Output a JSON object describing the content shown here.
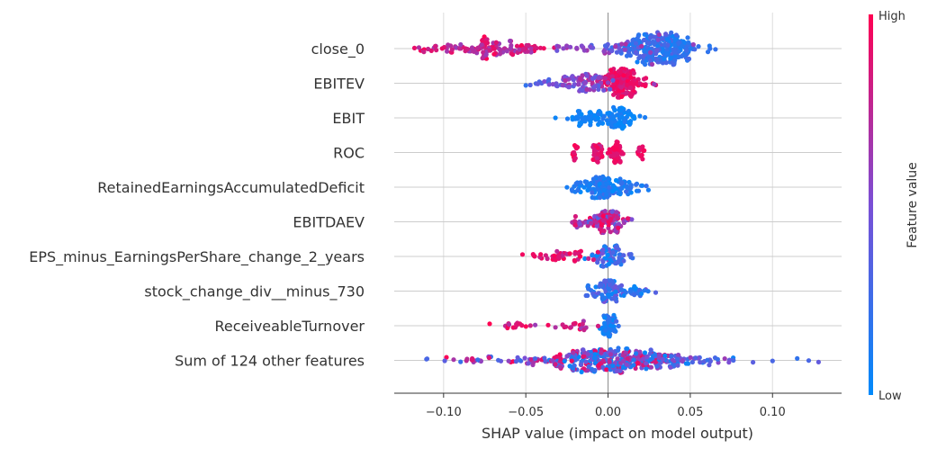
{
  "chart_data": {
    "type": "scatter",
    "subtype": "shap-beeswarm",
    "xlabel": "SHAP value (impact on model output)",
    "xlim": [
      -0.13,
      0.142
    ],
    "xticks": [
      -0.1,
      -0.05,
      0.0,
      0.05,
      0.1
    ],
    "xtick_labels": [
      "−0.10",
      "−0.05",
      "0.00",
      "0.05",
      "0.10"
    ],
    "grid": true,
    "colorbar": {
      "title": "Feature value",
      "high_label": "High",
      "low_label": "Low",
      "high_color": "#ff0052",
      "low_color": "#008afb"
    },
    "features": [
      {
        "name": "close_0",
        "clusters": [
          {
            "c": 0.032,
            "s": 0.012,
            "n": 260,
            "v": [
              0.05,
              0.35
            ]
          },
          {
            "c": -0.07,
            "s": 0.017,
            "n": 130,
            "v": [
              0.6,
              1.0
            ]
          },
          {
            "c": 0.0,
            "s": 0.022,
            "n": 50,
            "v": [
              0.3,
              0.7
            ]
          }
        ],
        "outliers": [
          [
            -0.115,
            0.7
          ],
          [
            -0.112,
            0.8
          ],
          [
            0.062,
            0.2
          ],
          [
            0.055,
            0.2
          ]
        ],
        "height": 18
      },
      {
        "name": "EBITEV",
        "clusters": [
          {
            "c": 0.008,
            "s": 0.007,
            "n": 150,
            "v": [
              0.8,
              1.0
            ]
          },
          {
            "c": -0.015,
            "s": 0.009,
            "n": 80,
            "v": [
              0.35,
              0.75
            ]
          },
          {
            "c": -0.04,
            "s": 0.006,
            "n": 12,
            "v": [
              0.2,
              0.6
            ]
          }
        ],
        "outliers": [
          [
            -0.05,
            0.2
          ],
          [
            0.028,
            0.6
          ]
        ],
        "height": 16
      },
      {
        "name": "EBIT",
        "clusters": [
          {
            "c": 0.006,
            "s": 0.004,
            "n": 70,
            "v": [
              0.0,
              0.15
            ]
          },
          {
            "c": -0.012,
            "s": 0.006,
            "n": 50,
            "v": [
              0.0,
              0.15
            ]
          },
          {
            "c": 0.015,
            "s": 0.004,
            "n": 10,
            "v": [
              0.0,
              0.15
            ]
          }
        ],
        "outliers": [
          [
            -0.032,
            0.05
          ]
        ],
        "height": 12
      },
      {
        "name": "ROC",
        "clusters": [
          {
            "c": 0.005,
            "s": 0.002,
            "n": 60,
            "v": [
              0.85,
              1.0
            ]
          },
          {
            "c": -0.006,
            "s": 0.0015,
            "n": 30,
            "v": [
              0.75,
              1.0
            ]
          },
          {
            "c": -0.02,
            "s": 0.0008,
            "n": 15,
            "v": [
              0.85,
              1.0
            ]
          },
          {
            "c": 0.02,
            "s": 0.0008,
            "n": 12,
            "v": [
              0.85,
              1.0
            ]
          }
        ],
        "outliers": [],
        "height": 12
      },
      {
        "name": "RetainedEarningsAccumulatedDeficit",
        "clusters": [
          {
            "c": -0.005,
            "s": 0.004,
            "n": 100,
            "v": [
              0.0,
              0.2
            ]
          },
          {
            "c": 0.008,
            "s": 0.008,
            "n": 70,
            "v": [
              0.0,
              0.3
            ]
          },
          {
            "c": -0.018,
            "s": 0.003,
            "n": 15,
            "v": [
              0.0,
              0.2
            ]
          }
        ],
        "outliers": [
          [
            -0.025,
            0.1
          ]
        ],
        "height": 12
      },
      {
        "name": "EBITDAEV",
        "clusters": [
          {
            "c": 0.0,
            "s": 0.006,
            "n": 120,
            "v": [
              0.3,
              1.0
            ]
          },
          {
            "c": -0.02,
            "s": 0.003,
            "n": 15,
            "v": [
              0.5,
              0.9
            ]
          }
        ],
        "outliers": [
          [
            0.012,
            0.9
          ]
        ],
        "height": 12
      },
      {
        "name": "EPS_minus_EarningsPerShare_change_2_years",
        "clusters": [
          {
            "c": 0.002,
            "s": 0.005,
            "n": 80,
            "v": [
              0.0,
              0.55
            ]
          },
          {
            "c": -0.03,
            "s": 0.01,
            "n": 40,
            "v": [
              0.75,
              1.0
            ]
          }
        ],
        "outliers": [
          [
            -0.052,
            0.95
          ],
          [
            0.014,
            0.3
          ]
        ],
        "height": 12
      },
      {
        "name": "stock_change_div__minus_730",
        "clusters": [
          {
            "c": 0.0,
            "s": 0.006,
            "n": 100,
            "v": [
              0.0,
              0.5
            ]
          },
          {
            "c": 0.018,
            "s": 0.004,
            "n": 20,
            "v": [
              0.0,
              0.3
            ]
          }
        ],
        "outliers": [
          [
            0.029,
            0.35
          ],
          [
            -0.012,
            0.2
          ]
        ],
        "height": 12
      },
      {
        "name": "ReceiveableTurnover",
        "clusters": [
          {
            "c": 0.001,
            "s": 0.002,
            "n": 60,
            "v": [
              0.0,
              0.25
            ]
          },
          {
            "c": -0.02,
            "s": 0.008,
            "n": 20,
            "v": [
              0.6,
              1.0
            ]
          },
          {
            "c": -0.055,
            "s": 0.007,
            "n": 15,
            "v": [
              0.6,
              1.0
            ]
          }
        ],
        "outliers": [
          [
            -0.072,
            1.0
          ],
          [
            0.005,
            0.3
          ]
        ],
        "height": 12
      },
      {
        "name": "Sum of 124 other features",
        "clusters": [
          {
            "c": 0.0,
            "s": 0.02,
            "n": 320,
            "v": [
              0.0,
              1.0
            ]
          },
          {
            "c": 0.04,
            "s": 0.02,
            "n": 60,
            "v": [
              0.0,
              0.7
            ]
          },
          {
            "c": -0.06,
            "s": 0.025,
            "n": 40,
            "v": [
              0.2,
              1.0
            ]
          }
        ],
        "outliers": [
          [
            -0.11,
            0.3
          ],
          [
            0.128,
            0.4
          ],
          [
            0.122,
            0.3
          ],
          [
            0.115,
            0.2
          ],
          [
            0.1,
            0.3
          ]
        ],
        "height": 14
      }
    ]
  }
}
